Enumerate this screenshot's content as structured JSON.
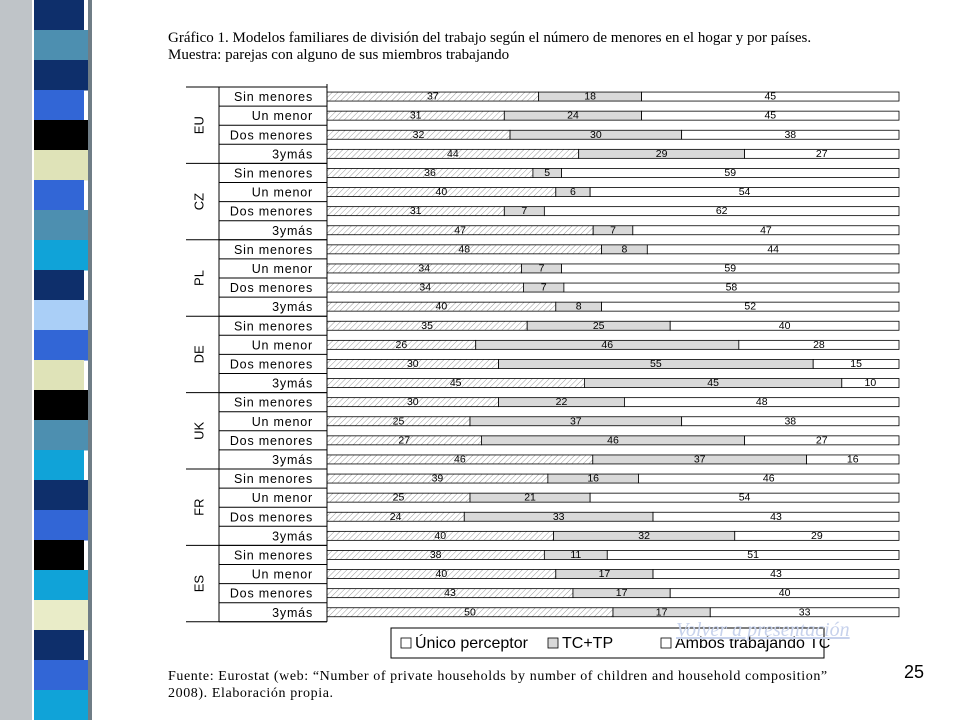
{
  "slide": {
    "title_line1": "Gráfico 1. Modelos familiares de división del trabajo según el número de menores en el hogar y por países.",
    "title_line2": "Muestra: parejas con alguno de sus miembros trabajando",
    "source_line1": "Fuente: Eurostat (web: “Number of private households by number of children and  household composition”",
    "source_line2": "2008). Elaboración propia.",
    "back_link": "Volver a presentación",
    "page_number": "25",
    "stripe_colors": [
      "#0e2f6b",
      "#4d8fb0",
      "#0e2f6b",
      "#3266d6",
      "#000000",
      "#dfe3b8",
      "#3266d6",
      "#4d8fb0",
      "#10a3d8",
      "#0e2f6b",
      "#aacff7",
      "#3266d6",
      "#dfe3b8",
      "#000000",
      "#4d8fb0",
      "#10a3d8",
      "#0e2f6b",
      "#3266d6",
      "#000000",
      "#10a3d8",
      "#e9ecc8",
      "#0e2f6b",
      "#3266d6",
      "#10a3d8"
    ]
  },
  "chart_data": {
    "type": "bar",
    "stacked": true,
    "orientation": "horizontal",
    "percent": true,
    "groups": [
      "EU",
      "CZ",
      "PL",
      "DE",
      "UK",
      "FR",
      "ES"
    ],
    "categories": [
      "Sin menores",
      "Un menor",
      "Dos menores",
      "3ymás"
    ],
    "series": [
      {
        "name": "Único perceptor",
        "pattern": "hatched",
        "color": "#ffffff"
      },
      {
        "name": "TC+TP",
        "pattern": "solid",
        "color": "#d9d9d9"
      },
      {
        "name": "Ambos trabajando TC",
        "pattern": "solid",
        "color": "#ffffff"
      }
    ],
    "values": {
      "EU": [
        [
          37,
          18,
          45
        ],
        [
          31,
          24,
          45
        ],
        [
          32,
          30,
          38
        ],
        [
          44,
          29,
          27
        ]
      ],
      "CZ": [
        [
          36,
          5,
          59
        ],
        [
          40,
          6,
          54
        ],
        [
          31,
          7,
          62
        ],
        [
          47,
          7,
          47
        ]
      ],
      "PL": [
        [
          48,
          8,
          44
        ],
        [
          34,
          7,
          59
        ],
        [
          34,
          7,
          58
        ],
        [
          40,
          8,
          52
        ]
      ],
      "DE": [
        [
          35,
          25,
          40
        ],
        [
          26,
          46,
          28
        ],
        [
          30,
          55,
          15
        ],
        [
          45,
          45,
          10
        ]
      ],
      "UK": [
        [
          30,
          22,
          48
        ],
        [
          25,
          37,
          38
        ],
        [
          27,
          46,
          27
        ],
        [
          46,
          37,
          16
        ]
      ],
      "FR": [
        [
          39,
          16,
          46
        ],
        [
          25,
          21,
          54
        ],
        [
          24,
          33,
          43
        ],
        [
          40,
          32,
          29
        ]
      ],
      "ES": [
        [
          38,
          11,
          51
        ],
        [
          40,
          17,
          43
        ],
        [
          43,
          17,
          40
        ],
        [
          50,
          17,
          33
        ]
      ]
    },
    "legend_position": "bottom"
  }
}
